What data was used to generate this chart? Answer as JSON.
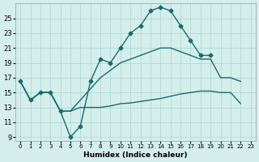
{
  "xlabel": "Humidex (Indice chaleur)",
  "background_color": "#d4eeec",
  "grid_color": "#aad4d2",
  "line_color": "#1a6b6b",
  "xlim": [
    -0.5,
    23.5
  ],
  "ylim": [
    8.5,
    27
  ],
  "xticks": [
    0,
    1,
    2,
    3,
    4,
    5,
    6,
    7,
    8,
    9,
    10,
    11,
    12,
    13,
    14,
    15,
    16,
    17,
    18,
    19,
    20,
    21,
    22,
    23
  ],
  "yticks": [
    9,
    11,
    13,
    15,
    17,
    19,
    21,
    23,
    25
  ],
  "series_main_x": [
    0,
    1,
    2,
    3,
    4,
    5,
    6,
    7,
    8,
    9,
    10,
    11,
    12,
    13,
    14,
    15,
    16,
    17,
    18,
    19
  ],
  "series_main_y": [
    16.5,
    14,
    15,
    15,
    12.5,
    9,
    10.5,
    16.5,
    19.5,
    19,
    21,
    23,
    24,
    26,
    26.5,
    26,
    24,
    22,
    20,
    20
  ],
  "series_mid_x": [
    0,
    1,
    2,
    3,
    4,
    5,
    6,
    7,
    8,
    9,
    10,
    11,
    12,
    13,
    14,
    15,
    16,
    17,
    18,
    19,
    20,
    21,
    22
  ],
  "series_mid_y": [
    16.5,
    14,
    15,
    15,
    12.5,
    12.5,
    14,
    15.5,
    17,
    18,
    19,
    19.5,
    20,
    20.5,
    21,
    21,
    20.5,
    20,
    19.5,
    19.5,
    17,
    17,
    16.5
  ],
  "series_low_x": [
    0,
    1,
    2,
    3,
    4,
    5,
    6,
    7,
    8,
    9,
    10,
    11,
    12,
    13,
    14,
    15,
    16,
    17,
    18,
    19,
    20,
    21,
    22
  ],
  "series_low_y": [
    16.5,
    14,
    15,
    15,
    12.5,
    12.5,
    13,
    13,
    13,
    13.2,
    13.5,
    13.6,
    13.8,
    14,
    14.2,
    14.5,
    14.8,
    15,
    15.2,
    15.2,
    15,
    15,
    13.5
  ]
}
